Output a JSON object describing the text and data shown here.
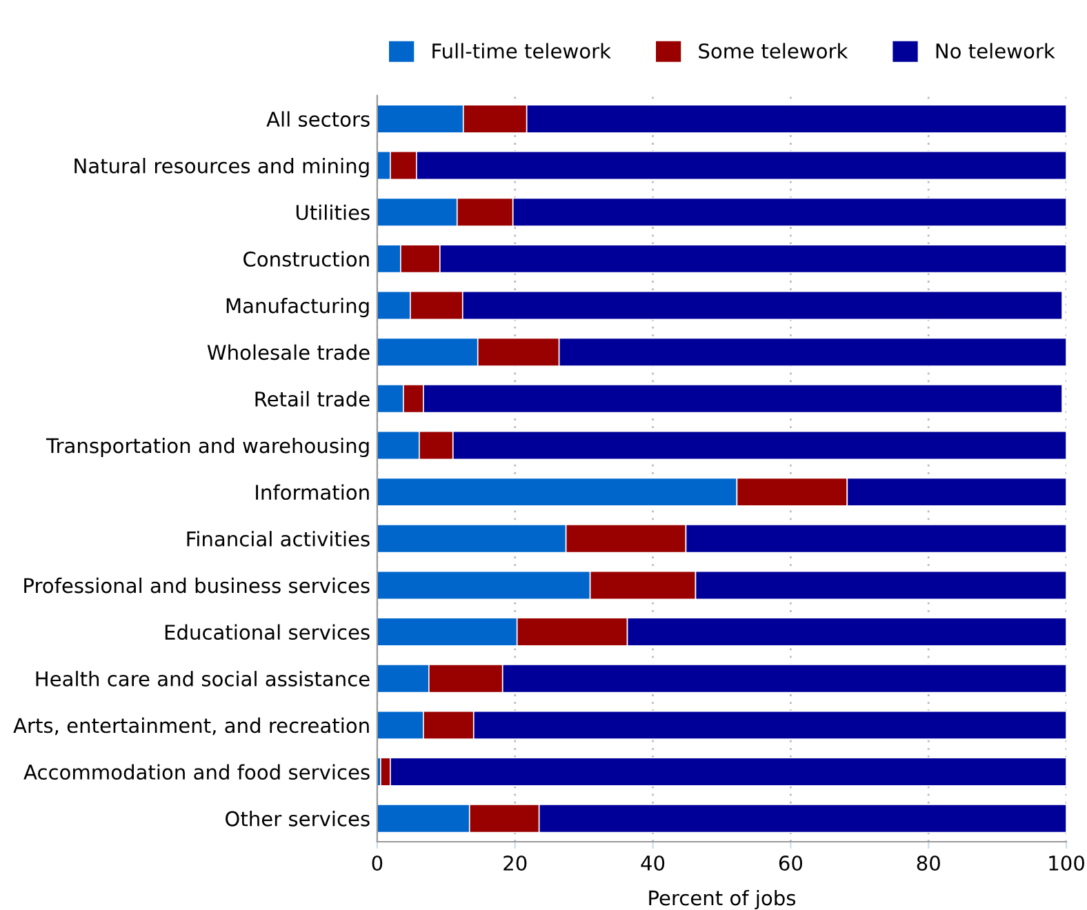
{
  "chart_data": {
    "type": "bar",
    "orientation": "horizontal",
    "stacked": true,
    "xlabel": "Percent of jobs",
    "categories": [
      "All sectors",
      "Natural resources and mining",
      "Utilities",
      "Construction",
      "Manufacturing",
      "Wholesale trade",
      "Retail trade",
      "Transportation and warehousing",
      "Information",
      "Financial activities",
      "Professional and business services",
      "Educational services",
      "Health care and social assistance",
      "Arts, entertainment, and recreation",
      "Accommodation and food services",
      "Other services"
    ],
    "series": [
      {
        "name": "Full-time telework",
        "color": "#0066cc",
        "values": [
          12.5,
          1.9,
          11.6,
          3.4,
          4.8,
          14.6,
          3.8,
          6.1,
          52.2,
          27.4,
          30.9,
          20.3,
          7.5,
          6.7,
          0.5,
          13.4
        ]
      },
      {
        "name": "Some telework",
        "color": "#990000",
        "values": [
          9.2,
          3.8,
          8.1,
          5.7,
          7.6,
          11.8,
          2.9,
          4.9,
          16.0,
          17.4,
          15.3,
          16.0,
          10.7,
          7.3,
          1.4,
          10.1
        ]
      },
      {
        "name": "No telework",
        "color": "#000099",
        "values": [
          78.3,
          94.3,
          80.3,
          90.9,
          87.0,
          73.6,
          92.7,
          89.0,
          31.8,
          55.2,
          53.8,
          63.7,
          81.8,
          86.0,
          98.1,
          76.5
        ]
      }
    ],
    "xlim": [
      0,
      100
    ],
    "xticks": [
      0,
      20,
      40,
      60,
      80,
      100
    ],
    "grid": "x",
    "legend": "top"
  }
}
